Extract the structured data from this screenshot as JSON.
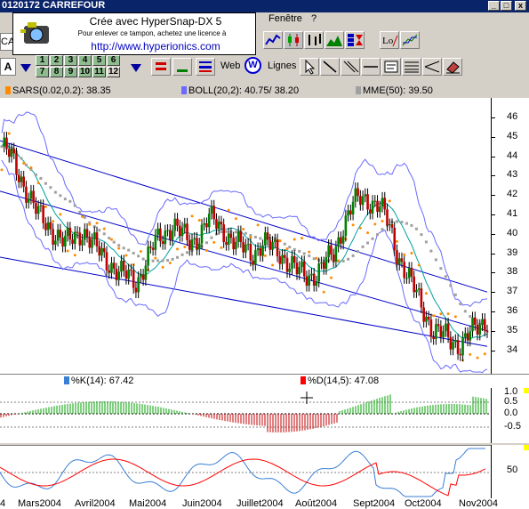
{
  "window": {
    "title": "0120172  CARREFOUR",
    "min": "_",
    "max": "□",
    "close": "x"
  },
  "menubar": {
    "fenetre": "Fenêtre",
    "help": "?"
  },
  "toolbar": {
    "symbol": "CA",
    "symbol_prefix": "ck",
    "letter_a": "A",
    "numbers_row1": [
      "1",
      "2",
      "3",
      "4",
      "5",
      "6"
    ],
    "numbers_row2": [
      "7",
      "8",
      "9",
      "10",
      "11",
      "12"
    ],
    "web_label": "Web",
    "web_icon": "W",
    "lignes_label": "Lignes"
  },
  "stamp": {
    "line1": "Crée avec HyperSnap-DX 5",
    "line2": "Pour enlever ce tampon, achetez une licence à",
    "url": "http://www.hyperionics.com"
  },
  "legend": {
    "sars": "SARS(0.02,0.2): 38.35",
    "boll": "BOLL(20,2): 40.75/ 38.20",
    "mme": "MME(50): 39.50",
    "k": "%K(14): 67.42",
    "d": "%D(14,5): 47.08"
  },
  "colors": {
    "sars": "#ff8c00",
    "boll": "#6a6aff",
    "mme": "#a0a0a0",
    "k": "#3a7fd5",
    "d": "#ff0000"
  },
  "price_axis": [
    "46",
    "45",
    "44",
    "43",
    "42",
    "41",
    "40",
    "39",
    "38",
    "37",
    "36",
    "35",
    "34"
  ],
  "osc_axis": [
    "1.0",
    "0.5",
    "0.0",
    "-0.5"
  ],
  "stoch_axis": [
    "50"
  ],
  "x_axis": [
    "4",
    "Mars2004",
    "Avril2004",
    "Mai2004",
    "Juin2004",
    "Juillet2004",
    "Août2004",
    "Sept2004",
    "Oct2004",
    "Nov2004"
  ],
  "chart_data": {
    "type": "candlestick",
    "x_range": [
      "Feb 2004",
      "Nov 2004"
    ],
    "ylim": [
      33.5,
      46.5
    ],
    "closes": [
      44.5,
      44.0,
      43.0,
      42.0,
      41.0,
      40.5,
      40.0,
      39.5,
      39.8,
      40.2,
      39.5,
      39.0,
      38.5,
      38.0,
      37.8,
      37.5,
      38.5,
      39.5,
      40.0,
      40.5,
      40.0,
      39.5,
      40.0,
      40.8,
      40.5,
      40.0,
      39.5,
      39.2,
      39.0,
      39.5,
      39.3,
      39.0,
      38.5,
      38.0,
      37.8,
      38.0,
      38.5,
      39.0,
      40.5,
      41.5,
      41.8,
      41.7,
      41.5,
      40.5,
      39.0,
      38.0,
      37.0,
      36.0,
      35.0,
      34.8,
      34.5,
      34.3,
      34.8,
      35.2,
      35.6
    ]
  }
}
